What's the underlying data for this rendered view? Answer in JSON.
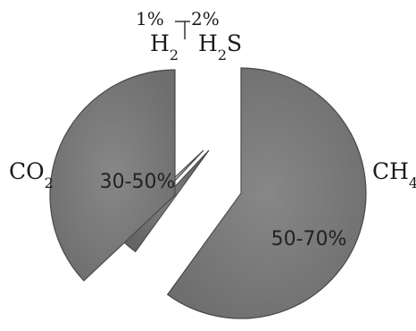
{
  "chart_data": {
    "type": "pie",
    "exploded": true,
    "legend": "none",
    "slices": [
      {
        "category": "CH",
        "sub": "4",
        "label": "50-70%",
        "value": 60,
        "color": "#7a7a7a"
      },
      {
        "category": "H",
        "sub": "2",
        "suffix": "S",
        "label": "2%",
        "value": 2,
        "color": "#6e6e6e"
      },
      {
        "category": "H",
        "sub": "2",
        "label": "1%",
        "value": 1,
        "color": "#bdbdbd"
      },
      {
        "category": "CO",
        "sub": "2",
        "label": "30-50%",
        "value": 37,
        "color": "#7a7a7a"
      }
    ]
  }
}
